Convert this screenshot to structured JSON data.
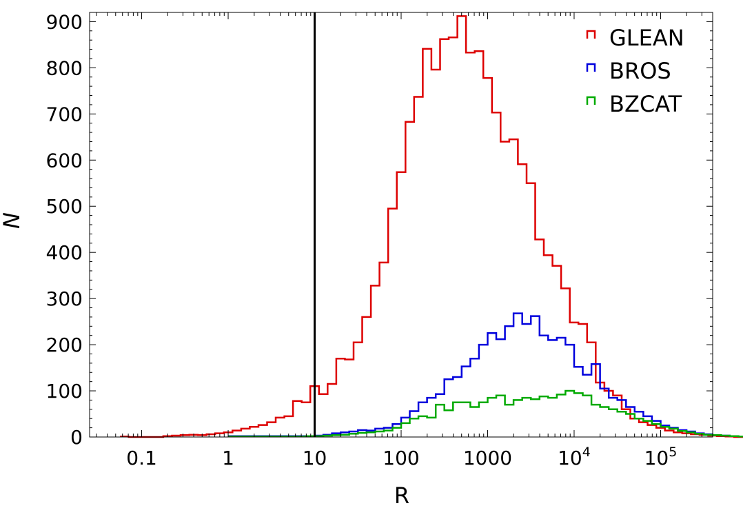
{
  "chart_data": {
    "type": "histogram",
    "xlabel": "R",
    "ylabel": "N",
    "x_scale": "log",
    "xlim": [
      0.025,
      400000
    ],
    "ylim": [
      0,
      920
    ],
    "x_ticks": [
      {
        "value": 0.1,
        "label": "0.1"
      },
      {
        "value": 1,
        "label": "1"
      },
      {
        "value": 10,
        "label": "10"
      },
      {
        "value": 100,
        "label": "100"
      },
      {
        "value": 1000,
        "label": "1000"
      },
      {
        "value": 10000,
        "label": "10",
        "exponent": "4"
      },
      {
        "value": 100000,
        "label": "10",
        "exponent": "5"
      }
    ],
    "y_ticks": [
      0,
      100,
      200,
      300,
      400,
      500,
      600,
      700,
      800,
      900
    ],
    "vertical_line": {
      "x": 10,
      "color": "#000000"
    },
    "legend_position": "top-right",
    "series": [
      {
        "name": "GLEAN",
        "color": "#dd0000",
        "start_exponent": -1.25,
        "bin_width": 0.1,
        "values": [
          1,
          0,
          0,
          0,
          0,
          2,
          3,
          4,
          5,
          4,
          6,
          8,
          10,
          14,
          18,
          22,
          26,
          32,
          42,
          45,
          78,
          75,
          110,
          93,
          115,
          170,
          168,
          205,
          260,
          328,
          378,
          495,
          574,
          683,
          737,
          841,
          796,
          862,
          866,
          912,
          833,
          836,
          778,
          703,
          640,
          645,
          591,
          550,
          428,
          394,
          371,
          322,
          248,
          245,
          205,
          118,
          100,
          90,
          60,
          40,
          32,
          26,
          20,
          14,
          10,
          8,
          6,
          5,
          3,
          2,
          1,
          0,
          0,
          0,
          0,
          0,
          0
        ]
      },
      {
        "name": "BROS",
        "color": "#0000dd",
        "start_exponent": 0.0,
        "bin_width": 0.1,
        "values": [
          2,
          2,
          2,
          2,
          2,
          2,
          2,
          2,
          2,
          2,
          3,
          5,
          8,
          10,
          12,
          15,
          14,
          18,
          20,
          28,
          42,
          56,
          75,
          85,
          93,
          125,
          130,
          153,
          170,
          200,
          225,
          212,
          240,
          268,
          245,
          262,
          220,
          210,
          215,
          200,
          152,
          135,
          158,
          105,
          85,
          80,
          65,
          55,
          45,
          35,
          25,
          20,
          15,
          12,
          8,
          6,
          4,
          3,
          2,
          1,
          0,
          0
        ]
      },
      {
        "name": "BZCAT",
        "color": "#00aa00",
        "start_exponent": 0.0,
        "bin_width": 0.1,
        "values": [
          1,
          1,
          1,
          1,
          1,
          1,
          1,
          1,
          1,
          2,
          2,
          3,
          4,
          5,
          7,
          9,
          10,
          12,
          14,
          20,
          30,
          40,
          45,
          42,
          70,
          58,
          75,
          75,
          65,
          75,
          85,
          90,
          70,
          80,
          85,
          82,
          88,
          85,
          92,
          100,
          95,
          90,
          70,
          65,
          60,
          55,
          50,
          40,
          35,
          28,
          22,
          18,
          13,
          10,
          7,
          5,
          4,
          3,
          2,
          1,
          0,
          0
        ]
      }
    ]
  }
}
